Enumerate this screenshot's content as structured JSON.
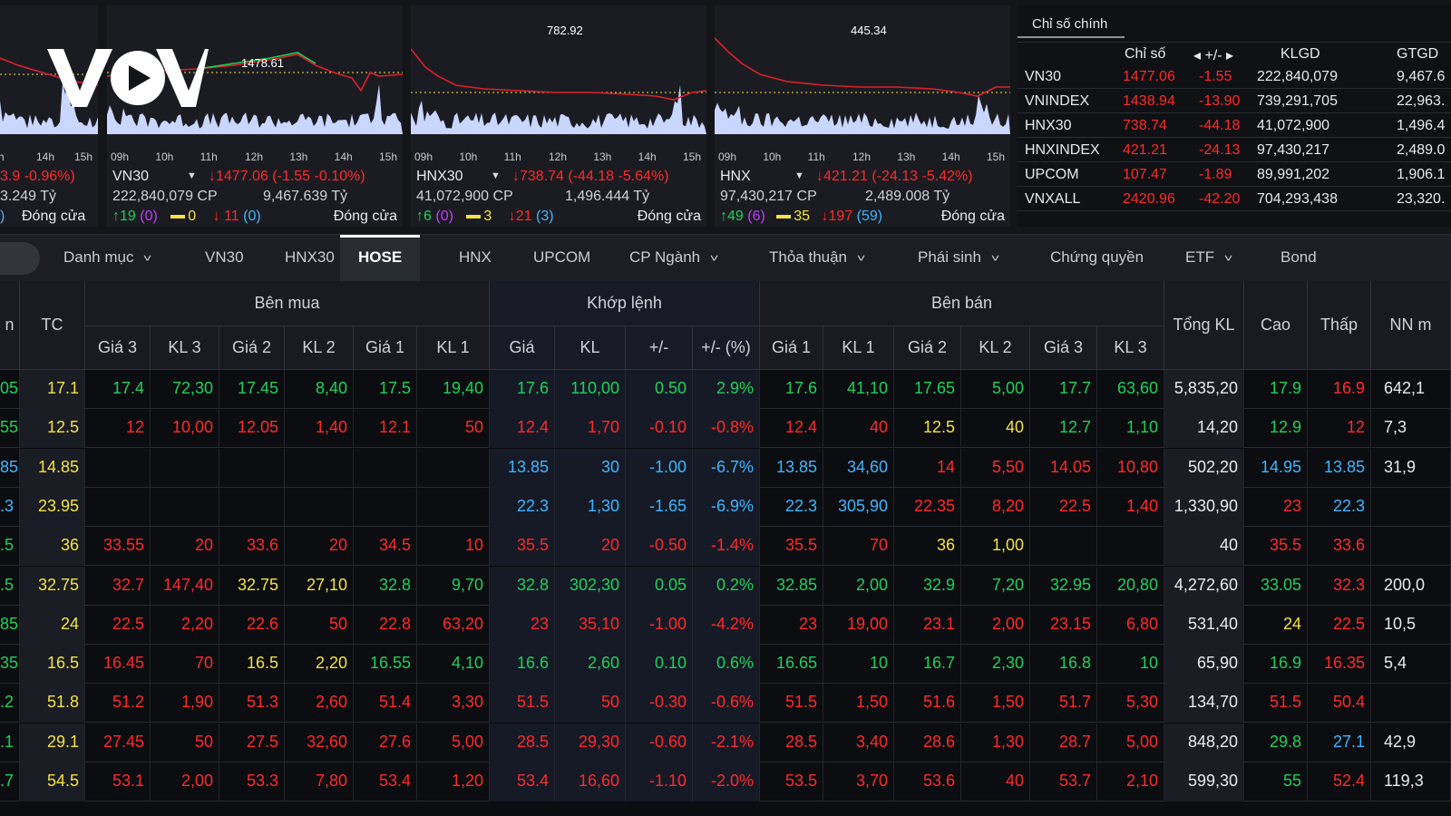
{
  "colors": {
    "up": "#1fd15a",
    "down": "#ff2a2a",
    "ref": "#f4e342",
    "ceil": "#c43bff",
    "floor": "#3fb6ff",
    "neutral": "#e8eaf0"
  },
  "logo": {
    "text": "VOV"
  },
  "panels": [
    {
      "id": "p0",
      "peak_label": "",
      "ticks": [
        "h",
        "14h",
        "15h"
      ],
      "row1": {
        "name": "",
        "change": "3.9 -0.96%)"
      },
      "row2": {
        "volume": "",
        "value": "3.249 Tỷ"
      },
      "row3": {
        "up": "",
        "ceil": "",
        "ref": "",
        "down": "",
        "floor": ")",
        "status": "Đóng cửa"
      }
    },
    {
      "id": "p1",
      "peak_label": "1478.61",
      "ticks": [
        "09h",
        "10h",
        "11h",
        "12h",
        "13h",
        "14h",
        "15h"
      ],
      "row1": {
        "name": "VN30",
        "change": "↓1477.06 (-1.55 -0.10%)"
      },
      "row2": {
        "volume": "222,840,079 CP",
        "value": "9,467.639 Tỷ"
      },
      "row3": {
        "up": "↑19",
        "ceil": "(0)",
        "ref": "0",
        "down": "↓ 11",
        "floor": "(0)",
        "status": "Đóng cửa"
      }
    },
    {
      "id": "p2",
      "peak_label": "782.92",
      "ticks": [
        "09h",
        "10h",
        "11h",
        "12h",
        "13h",
        "14h",
        "15h"
      ],
      "row1": {
        "name": "HNX30",
        "change": "↓738.74 (-44.18 -5.64%)"
      },
      "row2": {
        "volume": "41,072,900 CP",
        "value": "1,496.444 Tỷ"
      },
      "row3": {
        "up": "↑6",
        "ceil": "(0)",
        "ref": "3",
        "down": "↓21",
        "floor": "(3)",
        "status": "Đóng cửa"
      }
    },
    {
      "id": "p3",
      "peak_label": "445.34",
      "ticks": [
        "09h",
        "10h",
        "11h",
        "12h",
        "13h",
        "14h",
        "15h"
      ],
      "row1": {
        "name": "HNX",
        "change": "↓421.21 (-24.13 -5.42%)"
      },
      "row2": {
        "volume": "97,430,217 CP",
        "value": "2,489.008 Tỷ"
      },
      "row3": {
        "up": "↑49",
        "ceil": "(6)",
        "ref": "35",
        "down": "↓197",
        "floor": "(59)",
        "status": "Đóng cửa"
      }
    }
  ],
  "index_table": {
    "title": "Chỉ số chính",
    "headers": [
      "Chỉ số",
      "◂ +/- ▸",
      "KLGD",
      "GTGD"
    ],
    "rows": [
      {
        "name": "VN30",
        "value": "1477.06",
        "change": "-1.55",
        "volume": "222,840,079",
        "trade_value": "9,467.6"
      },
      {
        "name": "VNINDEX",
        "value": "1438.94",
        "change": "-13.90",
        "volume": "739,291,705",
        "trade_value": "22,963."
      },
      {
        "name": "HNX30",
        "value": "738.74",
        "change": "-44.18",
        "volume": "41,072,900",
        "trade_value": "1,496.4"
      },
      {
        "name": "HNXINDEX",
        "value": "421.21",
        "change": "-24.13",
        "volume": "97,430,217",
        "trade_value": "2,489.0"
      },
      {
        "name": "UPCOM",
        "value": "107.47",
        "change": "-1.89",
        "volume": "89,991,202",
        "trade_value": "1,906.1"
      },
      {
        "name": "VNXALL",
        "value": "2420.96",
        "change": "-42.20",
        "volume": "704,293,438",
        "trade_value": "23,320."
      }
    ]
  },
  "tabs": [
    {
      "label": "Danh mục",
      "dropdown": true
    },
    {
      "label": "VN30",
      "dropdown": false
    },
    {
      "label": "HNX30",
      "dropdown": false
    },
    {
      "label": "HOSE",
      "dropdown": false,
      "active": true
    },
    {
      "label": "HNX",
      "dropdown": false
    },
    {
      "label": "UPCOM",
      "dropdown": false
    },
    {
      "label": "CP Ngành",
      "dropdown": true
    },
    {
      "label": "Thỏa thuận",
      "dropdown": true
    },
    {
      "label": "Phái sinh",
      "dropdown": true
    },
    {
      "label": "Chứng quyền",
      "dropdown": false
    },
    {
      "label": "ETF",
      "dropdown": true
    },
    {
      "label": "Bond",
      "dropdown": false
    }
  ],
  "board": {
    "groups": {
      "buy": "Bên mua",
      "match": "Khớp lệnh",
      "sell": "Bên bán"
    },
    "columns": {
      "first": "n",
      "ref": "TC",
      "buy": [
        "Giá 3",
        "KL 3",
        "Giá 2",
        "KL 2",
        "Giá 1",
        "KL 1"
      ],
      "match": [
        "Giá",
        "KL",
        "+/-",
        "+/- (%)"
      ],
      "sell": [
        "Giá 1",
        "KL 1",
        "Giá 2",
        "KL 2",
        "Giá 3",
        "KL 3"
      ],
      "total": "Tổng KL",
      "high": "Cao",
      "low": "Thấp",
      "foreign": "NN m"
    },
    "rows": [
      {
        "c": [
          "05",
          "17.1",
          "17.4",
          "72,30",
          "17.45",
          "8,40",
          "17.5",
          "19,40",
          "17.6",
          "110,00",
          "0.50",
          "2.9%",
          "17.6",
          "41,10",
          "17.65",
          "5,00",
          "17.7",
          "63,60",
          "5,835,20",
          "17.9",
          "16.9",
          "642,1"
        ],
        "k": [
          "u",
          "r",
          "u",
          "u",
          "u",
          "u",
          "u",
          "u",
          "u",
          "u",
          "u",
          "u",
          "u",
          "u",
          "u",
          "u",
          "u",
          "u",
          "n",
          "u",
          "d",
          "n"
        ]
      },
      {
        "c": [
          "55",
          "12.5",
          "12",
          "10,00",
          "12.05",
          "1,40",
          "12.1",
          "50",
          "12.4",
          "1,70",
          "-0.10",
          "-0.8%",
          "12.4",
          "40",
          "12.5",
          "40",
          "12.7",
          "1,10",
          "14,20",
          "12.9",
          "12",
          "7,3"
        ],
        "k": [
          "u",
          "r",
          "d",
          "d",
          "d",
          "d",
          "d",
          "d",
          "d",
          "d",
          "d",
          "d",
          "d",
          "d",
          "r",
          "r",
          "u",
          "u",
          "n",
          "u",
          "d",
          "n"
        ]
      },
      {
        "c": [
          "85",
          "14.85",
          "",
          "",
          "",
          "",
          "",
          "",
          "13.85",
          "30",
          "-1.00",
          "-6.7%",
          "13.85",
          "34,60",
          "14",
          "5,50",
          "14.05",
          "10,80",
          "502,20",
          "14.95",
          "13.85",
          "31,9"
        ],
        "k": [
          "c",
          "r",
          "n",
          "n",
          "n",
          "n",
          "n",
          "n",
          "c",
          "c",
          "c",
          "c",
          "c",
          "c",
          "d",
          "d",
          "d",
          "d",
          "n",
          "c",
          "c",
          "n"
        ]
      },
      {
        "c": [
          ".3",
          "23.95",
          "",
          "",
          "",
          "",
          "",
          "",
          "22.3",
          "1,30",
          "-1.65",
          "-6.9%",
          "22.3",
          "305,90",
          "22.35",
          "8,20",
          "22.5",
          "1,40",
          "1,330,90",
          "23",
          "22.3",
          ""
        ],
        "k": [
          "c",
          "r",
          "n",
          "n",
          "n",
          "n",
          "n",
          "n",
          "c",
          "c",
          "c",
          "c",
          "c",
          "c",
          "d",
          "d",
          "d",
          "d",
          "n",
          "d",
          "c",
          "n"
        ]
      },
      {
        "c": [
          ".5",
          "36",
          "33.55",
          "20",
          "33.6",
          "20",
          "34.5",
          "10",
          "35.5",
          "20",
          "-0.50",
          "-1.4%",
          "35.5",
          "70",
          "36",
          "1,00",
          "",
          "",
          "40",
          "35.5",
          "33.6",
          ""
        ],
        "k": [
          "u",
          "r",
          "d",
          "d",
          "d",
          "d",
          "d",
          "d",
          "d",
          "d",
          "d",
          "d",
          "d",
          "d",
          "r",
          "r",
          "n",
          "n",
          "n",
          "d",
          "d",
          "n"
        ]
      },
      {
        "c": [
          ".5",
          "32.75",
          "32.7",
          "147,40",
          "32.75",
          "27,10",
          "32.8",
          "9,70",
          "32.8",
          "302,30",
          "0.05",
          "0.2%",
          "32.85",
          "2,00",
          "32.9",
          "7,20",
          "32.95",
          "20,80",
          "4,272,60",
          "33.05",
          "32.3",
          "200,0"
        ],
        "k": [
          "u",
          "r",
          "d",
          "d",
          "r",
          "r",
          "u",
          "u",
          "u",
          "u",
          "u",
          "u",
          "u",
          "u",
          "u",
          "u",
          "u",
          "u",
          "n",
          "u",
          "d",
          "n"
        ]
      },
      {
        "c": [
          "85",
          "24",
          "22.5",
          "2,20",
          "22.6",
          "50",
          "22.8",
          "63,20",
          "23",
          "35,10",
          "-1.00",
          "-4.2%",
          "23",
          "19,00",
          "23.1",
          "2,00",
          "23.15",
          "6,80",
          "531,40",
          "24",
          "22.5",
          "10,5"
        ],
        "k": [
          "u",
          "r",
          "d",
          "d",
          "d",
          "d",
          "d",
          "d",
          "d",
          "d",
          "d",
          "d",
          "d",
          "d",
          "d",
          "d",
          "d",
          "d",
          "n",
          "r",
          "d",
          "n"
        ]
      },
      {
        "c": [
          "35",
          "16.5",
          "16.45",
          "70",
          "16.5",
          "2,20",
          "16.55",
          "4,10",
          "16.6",
          "2,60",
          "0.10",
          "0.6%",
          "16.65",
          "10",
          "16.7",
          "2,30",
          "16.8",
          "10",
          "65,90",
          "16.9",
          "16.35",
          "5,4"
        ],
        "k": [
          "u",
          "r",
          "d",
          "d",
          "r",
          "r",
          "u",
          "u",
          "u",
          "u",
          "u",
          "u",
          "u",
          "u",
          "u",
          "u",
          "u",
          "u",
          "n",
          "u",
          "d",
          "n"
        ]
      },
      {
        "c": [
          ".2",
          "51.8",
          "51.2",
          "1,90",
          "51.3",
          "2,60",
          "51.4",
          "3,30",
          "51.5",
          "50",
          "-0.30",
          "-0.6%",
          "51.5",
          "1,50",
          "51.6",
          "1,50",
          "51.7",
          "5,30",
          "134,70",
          "51.5",
          "50.4",
          ""
        ],
        "k": [
          "u",
          "r",
          "d",
          "d",
          "d",
          "d",
          "d",
          "d",
          "d",
          "d",
          "d",
          "d",
          "d",
          "d",
          "d",
          "d",
          "d",
          "d",
          "n",
          "d",
          "d",
          "n"
        ]
      },
      {
        "c": [
          ".1",
          "29.1",
          "27.45",
          "50",
          "27.5",
          "32,60",
          "27.6",
          "5,00",
          "28.5",
          "29,30",
          "-0.60",
          "-2.1%",
          "28.5",
          "3,40",
          "28.6",
          "1,30",
          "28.7",
          "5,00",
          "848,20",
          "29.8",
          "27.1",
          "42,9"
        ],
        "k": [
          "u",
          "r",
          "d",
          "d",
          "d",
          "d",
          "d",
          "d",
          "d",
          "d",
          "d",
          "d",
          "d",
          "d",
          "d",
          "d",
          "d",
          "d",
          "n",
          "u",
          "c",
          "n"
        ]
      },
      {
        "c": [
          ".7",
          "54.5",
          "53.1",
          "2,00",
          "53.3",
          "7,80",
          "53.4",
          "1,20",
          "53.4",
          "16,60",
          "-1.10",
          "-2.0%",
          "53.5",
          "3,70",
          "53.6",
          "40",
          "53.7",
          "2,10",
          "599,30",
          "55",
          "52.4",
          "119,3"
        ],
        "k": [
          "u",
          "r",
          "d",
          "d",
          "d",
          "d",
          "d",
          "d",
          "d",
          "d",
          "d",
          "d",
          "d",
          "d",
          "d",
          "d",
          "d",
          "d",
          "n",
          "u",
          "d",
          "n"
        ]
      }
    ]
  }
}
